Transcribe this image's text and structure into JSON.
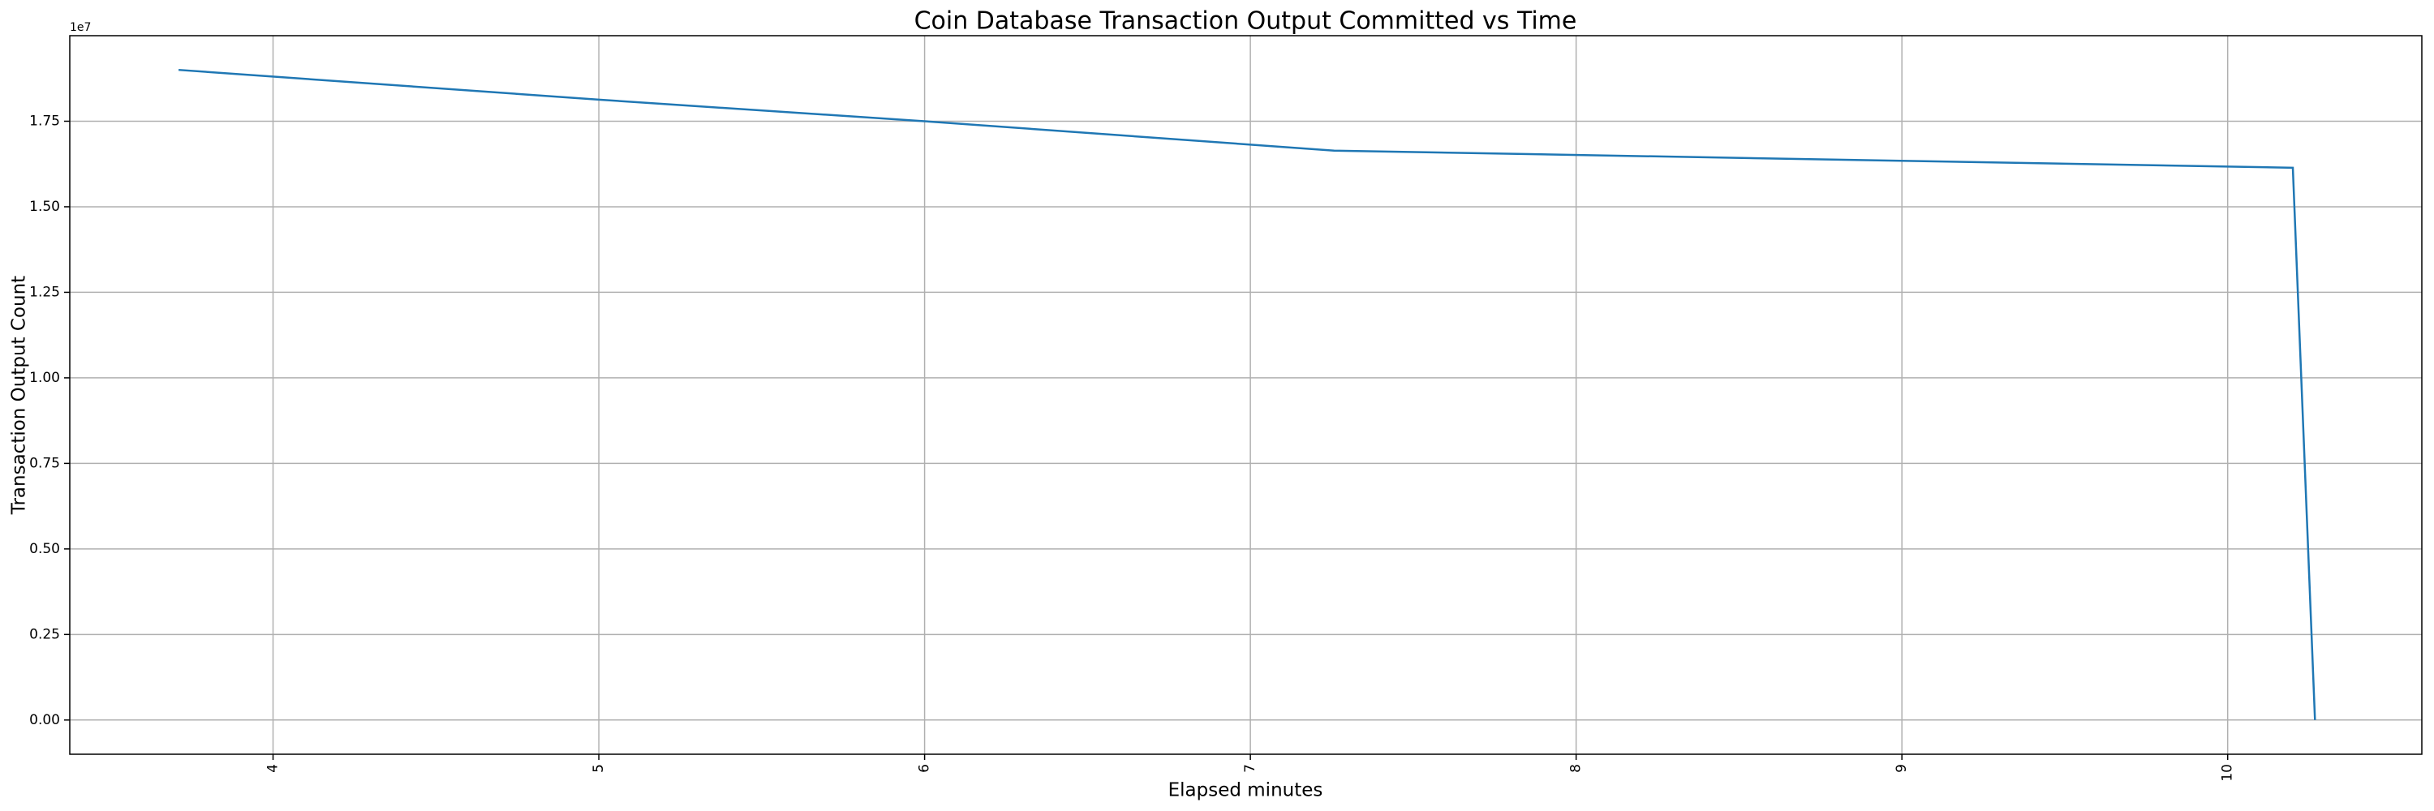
{
  "chart_data": {
    "type": "line",
    "title": "Coin Database Transaction Output Committed vs Time",
    "x_label": "Elapsed minutes",
    "y_label": "Transaction Output Count",
    "y_offset_label": "1e7",
    "x": [
      3.71,
      5,
      6,
      7.257,
      10.2,
      10.268
    ],
    "values": [
      19000000,
      18130000,
      17500000,
      16640000,
      16140000,
      0
    ],
    "color": "#1f77b4",
    "xlim": [
      3.376,
      10.596
    ],
    "ylim": [
      -1000000,
      20000000
    ],
    "xticks": [
      4,
      5,
      6,
      7,
      8,
      9,
      10
    ],
    "yticks": [
      {
        "value": 0,
        "label": "0.00"
      },
      {
        "value": 2500000,
        "label": "0.25"
      },
      {
        "value": 5000000,
        "label": "0.50"
      },
      {
        "value": 7500000,
        "label": "0.75"
      },
      {
        "value": 10000000,
        "label": "1.00"
      },
      {
        "value": 12500000,
        "label": "1.25"
      },
      {
        "value": 15000000,
        "label": "1.50"
      },
      {
        "value": 17500000,
        "label": "1.75"
      }
    ],
    "grid": true
  }
}
